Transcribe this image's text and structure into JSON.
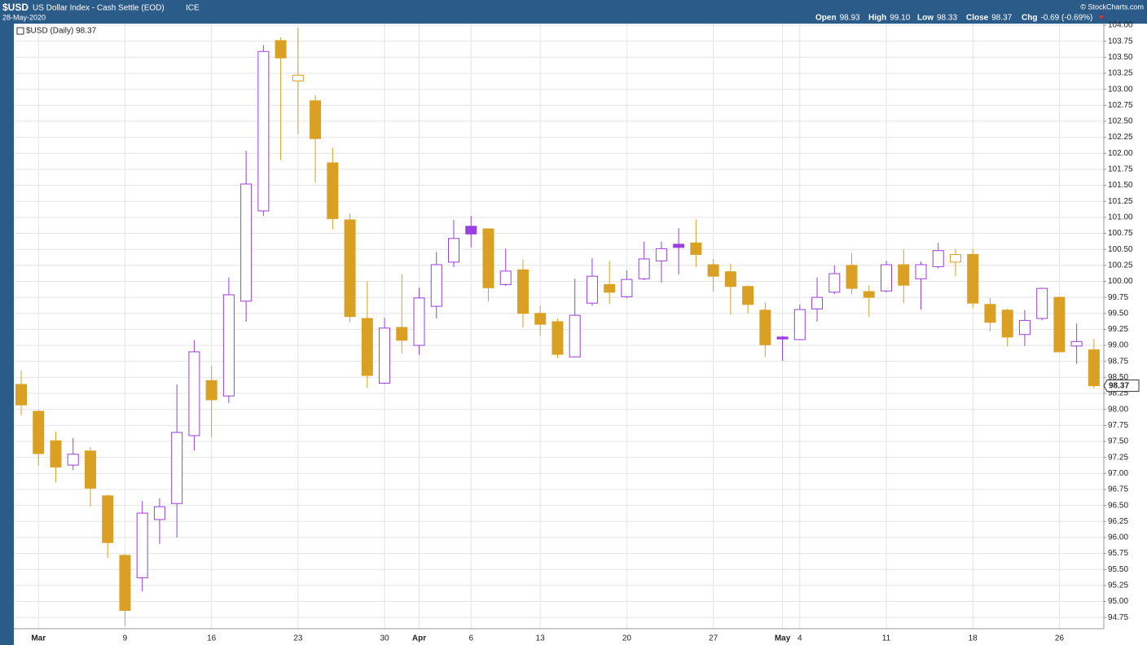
{
  "header": {
    "symbol": "$USD",
    "name": "US Dollar Index - Cash Settle (EOD)",
    "exchange": "ICE",
    "date": "28-May-2020",
    "credit": "© StockCharts.com",
    "stats": [
      {
        "label": "Open",
        "value": "98.93"
      },
      {
        "label": "High",
        "value": "99.10"
      },
      {
        "label": "Low",
        "value": "98.33"
      },
      {
        "label": "Close",
        "value": "98.37"
      },
      {
        "label": "Chg",
        "value": "-0.69 (-0.69%)"
      }
    ]
  },
  "chart_data": {
    "type": "candlestick",
    "legend_label": "$USD (Daily) 98.37",
    "price_label": "98.37",
    "up_color": "#9b3fe0",
    "down_color": "#d9a023",
    "grid": true,
    "categories": [
      null,
      "Mar",
      null,
      null,
      null,
      null,
      "9",
      null,
      null,
      null,
      null,
      "16",
      null,
      null,
      null,
      null,
      "23",
      null,
      null,
      null,
      null,
      "30",
      null,
      "Apr",
      null,
      null,
      "6",
      null,
      null,
      null,
      "13",
      null,
      null,
      null,
      null,
      "20",
      null,
      null,
      null,
      null,
      "27",
      null,
      null,
      null,
      "May",
      "4",
      null,
      null,
      null,
      null,
      "11",
      null,
      null,
      null,
      null,
      "18",
      null,
      null,
      null,
      null,
      "26",
      null,
      null
    ],
    "open": [
      98.39,
      97.97,
      97.51,
      97.13,
      97.35,
      96.65,
      95.72,
      95.37,
      96.28,
      96.53,
      97.59,
      98.45,
      98.21,
      99.69,
      101.1,
      103.76,
      103.13,
      102.82,
      101.85,
      100.96,
      99.42,
      98.41,
      99.28,
      99.0,
      99.61,
      100.3,
      100.86,
      100.82,
      99.95,
      100.18,
      99.5,
      99.37,
      98.82,
      99.66,
      99.95,
      99.76,
      100.04,
      100.32,
      100.58,
      100.6,
      100.26,
      100.15,
      99.92,
      99.55,
      99.13,
      99.09,
      99.57,
      99.83,
      100.25,
      99.84,
      99.85,
      100.26,
      100.04,
      100.23,
      100.3,
      100.42,
      99.64,
      99.55,
      99.17,
      99.42,
      99.75,
      98.99,
      98.93
    ],
    "high": [
      98.61,
      97.99,
      97.65,
      97.55,
      97.41,
      96.67,
      95.74,
      96.57,
      96.61,
      98.39,
      99.08,
      98.68,
      100.06,
      102.04,
      103.69,
      103.81,
      103.96,
      102.91,
      102.09,
      101.06,
      100.0,
      99.43,
      100.11,
      99.9,
      100.46,
      100.96,
      101.02,
      100.82,
      100.51,
      100.34,
      99.62,
      99.42,
      100.04,
      100.36,
      100.32,
      100.17,
      100.62,
      100.62,
      100.83,
      100.97,
      100.35,
      100.28,
      99.94,
      99.67,
      99.15,
      99.64,
      100.06,
      100.25,
      100.44,
      99.94,
      100.32,
      100.5,
      100.31,
      100.6,
      100.51,
      100.51,
      99.74,
      99.57,
      99.55,
      99.9,
      99.76,
      99.34,
      99.1
    ],
    "low": [
      97.91,
      97.12,
      96.86,
      97.05,
      96.48,
      95.68,
      94.62,
      95.16,
      95.9,
      96.0,
      97.36,
      97.56,
      98.1,
      99.37,
      101.02,
      101.89,
      102.3,
      101.54,
      100.81,
      99.36,
      98.34,
      98.39,
      98.87,
      98.85,
      99.42,
      100.22,
      100.53,
      99.69,
      99.93,
      99.28,
      99.15,
      98.8,
      98.82,
      99.62,
      99.65,
      99.74,
      100.02,
      99.98,
      100.11,
      100.22,
      99.84,
      99.48,
      99.5,
      98.82,
      98.76,
      99.08,
      99.37,
      99.8,
      99.8,
      99.45,
      99.83,
      99.66,
      99.56,
      100.2,
      100.08,
      99.58,
      99.22,
      98.99,
      98.99,
      99.39,
      98.9,
      98.71,
      98.33
    ],
    "close": [
      98.07,
      97.31,
      97.1,
      97.3,
      96.77,
      95.92,
      94.86,
      96.38,
      96.48,
      97.64,
      98.9,
      98.15,
      99.79,
      101.52,
      103.59,
      103.49,
      103.22,
      102.23,
      100.98,
      99.45,
      98.53,
      99.27,
      99.08,
      99.74,
      100.26,
      100.67,
      100.74,
      99.9,
      100.16,
      99.5,
      99.33,
      98.86,
      99.47,
      100.08,
      99.83,
      100.03,
      100.35,
      100.51,
      100.53,
      100.42,
      100.08,
      99.92,
      99.64,
      99.01,
      99.1,
      99.56,
      99.75,
      100.12,
      99.89,
      99.75,
      100.26,
      99.94,
      100.26,
      100.48,
      100.42,
      99.66,
      99.36,
      99.13,
      99.39,
      99.89,
      98.9,
      99.06,
      98.37
    ],
    "ylim": [
      94.6,
      104.0
    ],
    "yticks": [
      {
        "value": 94.75,
        "label": "94.75"
      },
      {
        "value": 95,
        "label": "95.00"
      },
      {
        "value": 95.25,
        "label": "95.25"
      },
      {
        "value": 95.5,
        "label": "95.50"
      },
      {
        "value": 95.75,
        "label": "95.75"
      },
      {
        "value": 96,
        "label": "96.00"
      },
      {
        "value": 96.25,
        "label": "96.25"
      },
      {
        "value": 96.5,
        "label": "96.50"
      },
      {
        "value": 96.75,
        "label": "96.75"
      },
      {
        "value": 97,
        "label": "97.00"
      },
      {
        "value": 97.25,
        "label": "97.25"
      },
      {
        "value": 97.5,
        "label": "97.50"
      },
      {
        "value": 97.75,
        "label": "97.75"
      },
      {
        "value": 98,
        "label": "98.00"
      },
      {
        "value": 98.25,
        "label": "98.25"
      },
      {
        "value": 98.5,
        "label": "98.50"
      },
      {
        "value": 98.75,
        "label": "98.75"
      },
      {
        "value": 99,
        "label": "99.00"
      },
      {
        "value": 99.25,
        "label": "99.25"
      },
      {
        "value": 99.5,
        "label": "99.50"
      },
      {
        "value": 99.75,
        "label": "99.75"
      },
      {
        "value": 100,
        "label": "100.00"
      },
      {
        "value": 100.25,
        "label": "100.25"
      },
      {
        "value": 100.5,
        "label": "100.50"
      },
      {
        "value": 100.75,
        "label": "100.75"
      },
      {
        "value": 101,
        "label": "101.00"
      },
      {
        "value": 101.25,
        "label": "101.25"
      },
      {
        "value": 101.5,
        "label": "101.50"
      },
      {
        "value": 101.75,
        "label": "101.75"
      },
      {
        "value": 102,
        "label": "102.00"
      },
      {
        "value": 102.25,
        "label": "102.25"
      },
      {
        "value": 102.5,
        "label": "102.50"
      },
      {
        "value": 102.75,
        "label": "102.75"
      },
      {
        "value": 103,
        "label": "103.00"
      },
      {
        "value": 103.25,
        "label": "103.25"
      },
      {
        "value": 103.5,
        "label": "103.50"
      },
      {
        "value": 103.75,
        "label": "103.75"
      },
      {
        "value": 104,
        "label": "104.00"
      }
    ]
  }
}
